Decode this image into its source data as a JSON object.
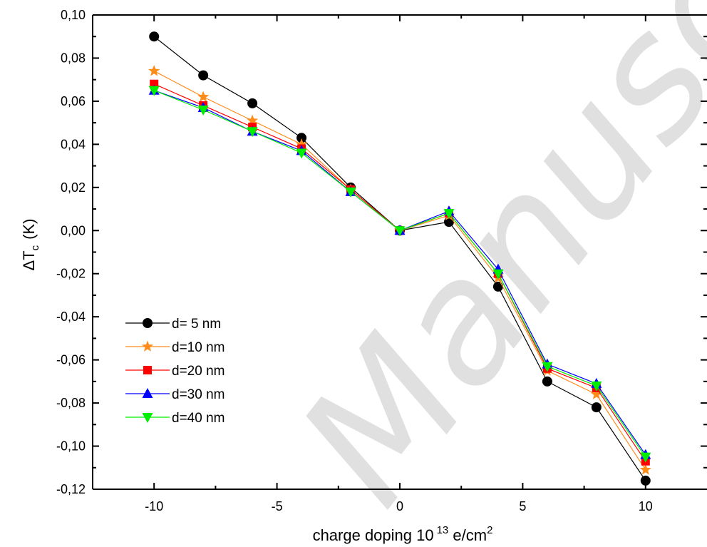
{
  "chart_data": {
    "type": "line",
    "xlabel": {
      "main": "charge doping 10",
      "sup1": "13",
      "mid": " e/cm",
      "sup2": "2"
    },
    "ylabel": {
      "delta": "ΔT",
      "sub": "c",
      "unit": "(K)"
    },
    "xlim": [
      -12.5,
      12.5
    ],
    "ylim": [
      -0.12,
      0.1
    ],
    "x_ticks": [
      -10,
      -5,
      0,
      5,
      10
    ],
    "x_tick_labels": [
      "-10",
      "-5",
      "0",
      "5",
      "10"
    ],
    "y_ticks": [
      -0.12,
      -0.1,
      -0.08,
      -0.06,
      -0.04,
      -0.02,
      0.0,
      0.02,
      0.04,
      0.06,
      0.08,
      0.1
    ],
    "y_tick_labels": [
      "-0,12",
      "-0,10",
      "-0,08",
      "-0,06",
      "-0,04",
      "-0,02",
      "0,00",
      "0,02",
      "0,04",
      "0,06",
      "0,08",
      "0,10"
    ],
    "grid": false,
    "legend_position": "lower-left",
    "x": [
      -10,
      -8,
      -6,
      -4,
      -2,
      0,
      2,
      4,
      6,
      8,
      10
    ],
    "series": [
      {
        "name": "d= 5 nm",
        "marker": "circle",
        "color": "#000000",
        "values": [
          0.09,
          0.072,
          0.059,
          0.043,
          0.02,
          0.0,
          0.004,
          -0.026,
          -0.07,
          -0.082,
          -0.116
        ]
      },
      {
        "name": "d=10 nm",
        "marker": "star",
        "color": "#ff8c1a",
        "values": [
          0.074,
          0.062,
          0.051,
          0.04,
          0.019,
          0.0,
          0.007,
          -0.022,
          -0.065,
          -0.076,
          -0.111
        ]
      },
      {
        "name": "d=20 nm",
        "marker": "square",
        "color": "#ff0000",
        "values": [
          0.068,
          0.058,
          0.048,
          0.038,
          0.019,
          0.0,
          0.008,
          -0.02,
          -0.064,
          -0.073,
          -0.107
        ]
      },
      {
        "name": "d=30 nm",
        "marker": "triangle-up",
        "color": "#0000ff",
        "values": [
          0.065,
          0.057,
          0.046,
          0.037,
          0.018,
          0.0,
          0.009,
          -0.018,
          -0.062,
          -0.071,
          -0.104
        ]
      },
      {
        "name": "d=40 nm",
        "marker": "triangle-down",
        "color": "#00ee00",
        "values": [
          0.065,
          0.056,
          0.046,
          0.036,
          0.018,
          0.0,
          0.008,
          -0.02,
          -0.063,
          -0.072,
          -0.105
        ]
      }
    ],
    "watermark": "Manuscript"
  }
}
